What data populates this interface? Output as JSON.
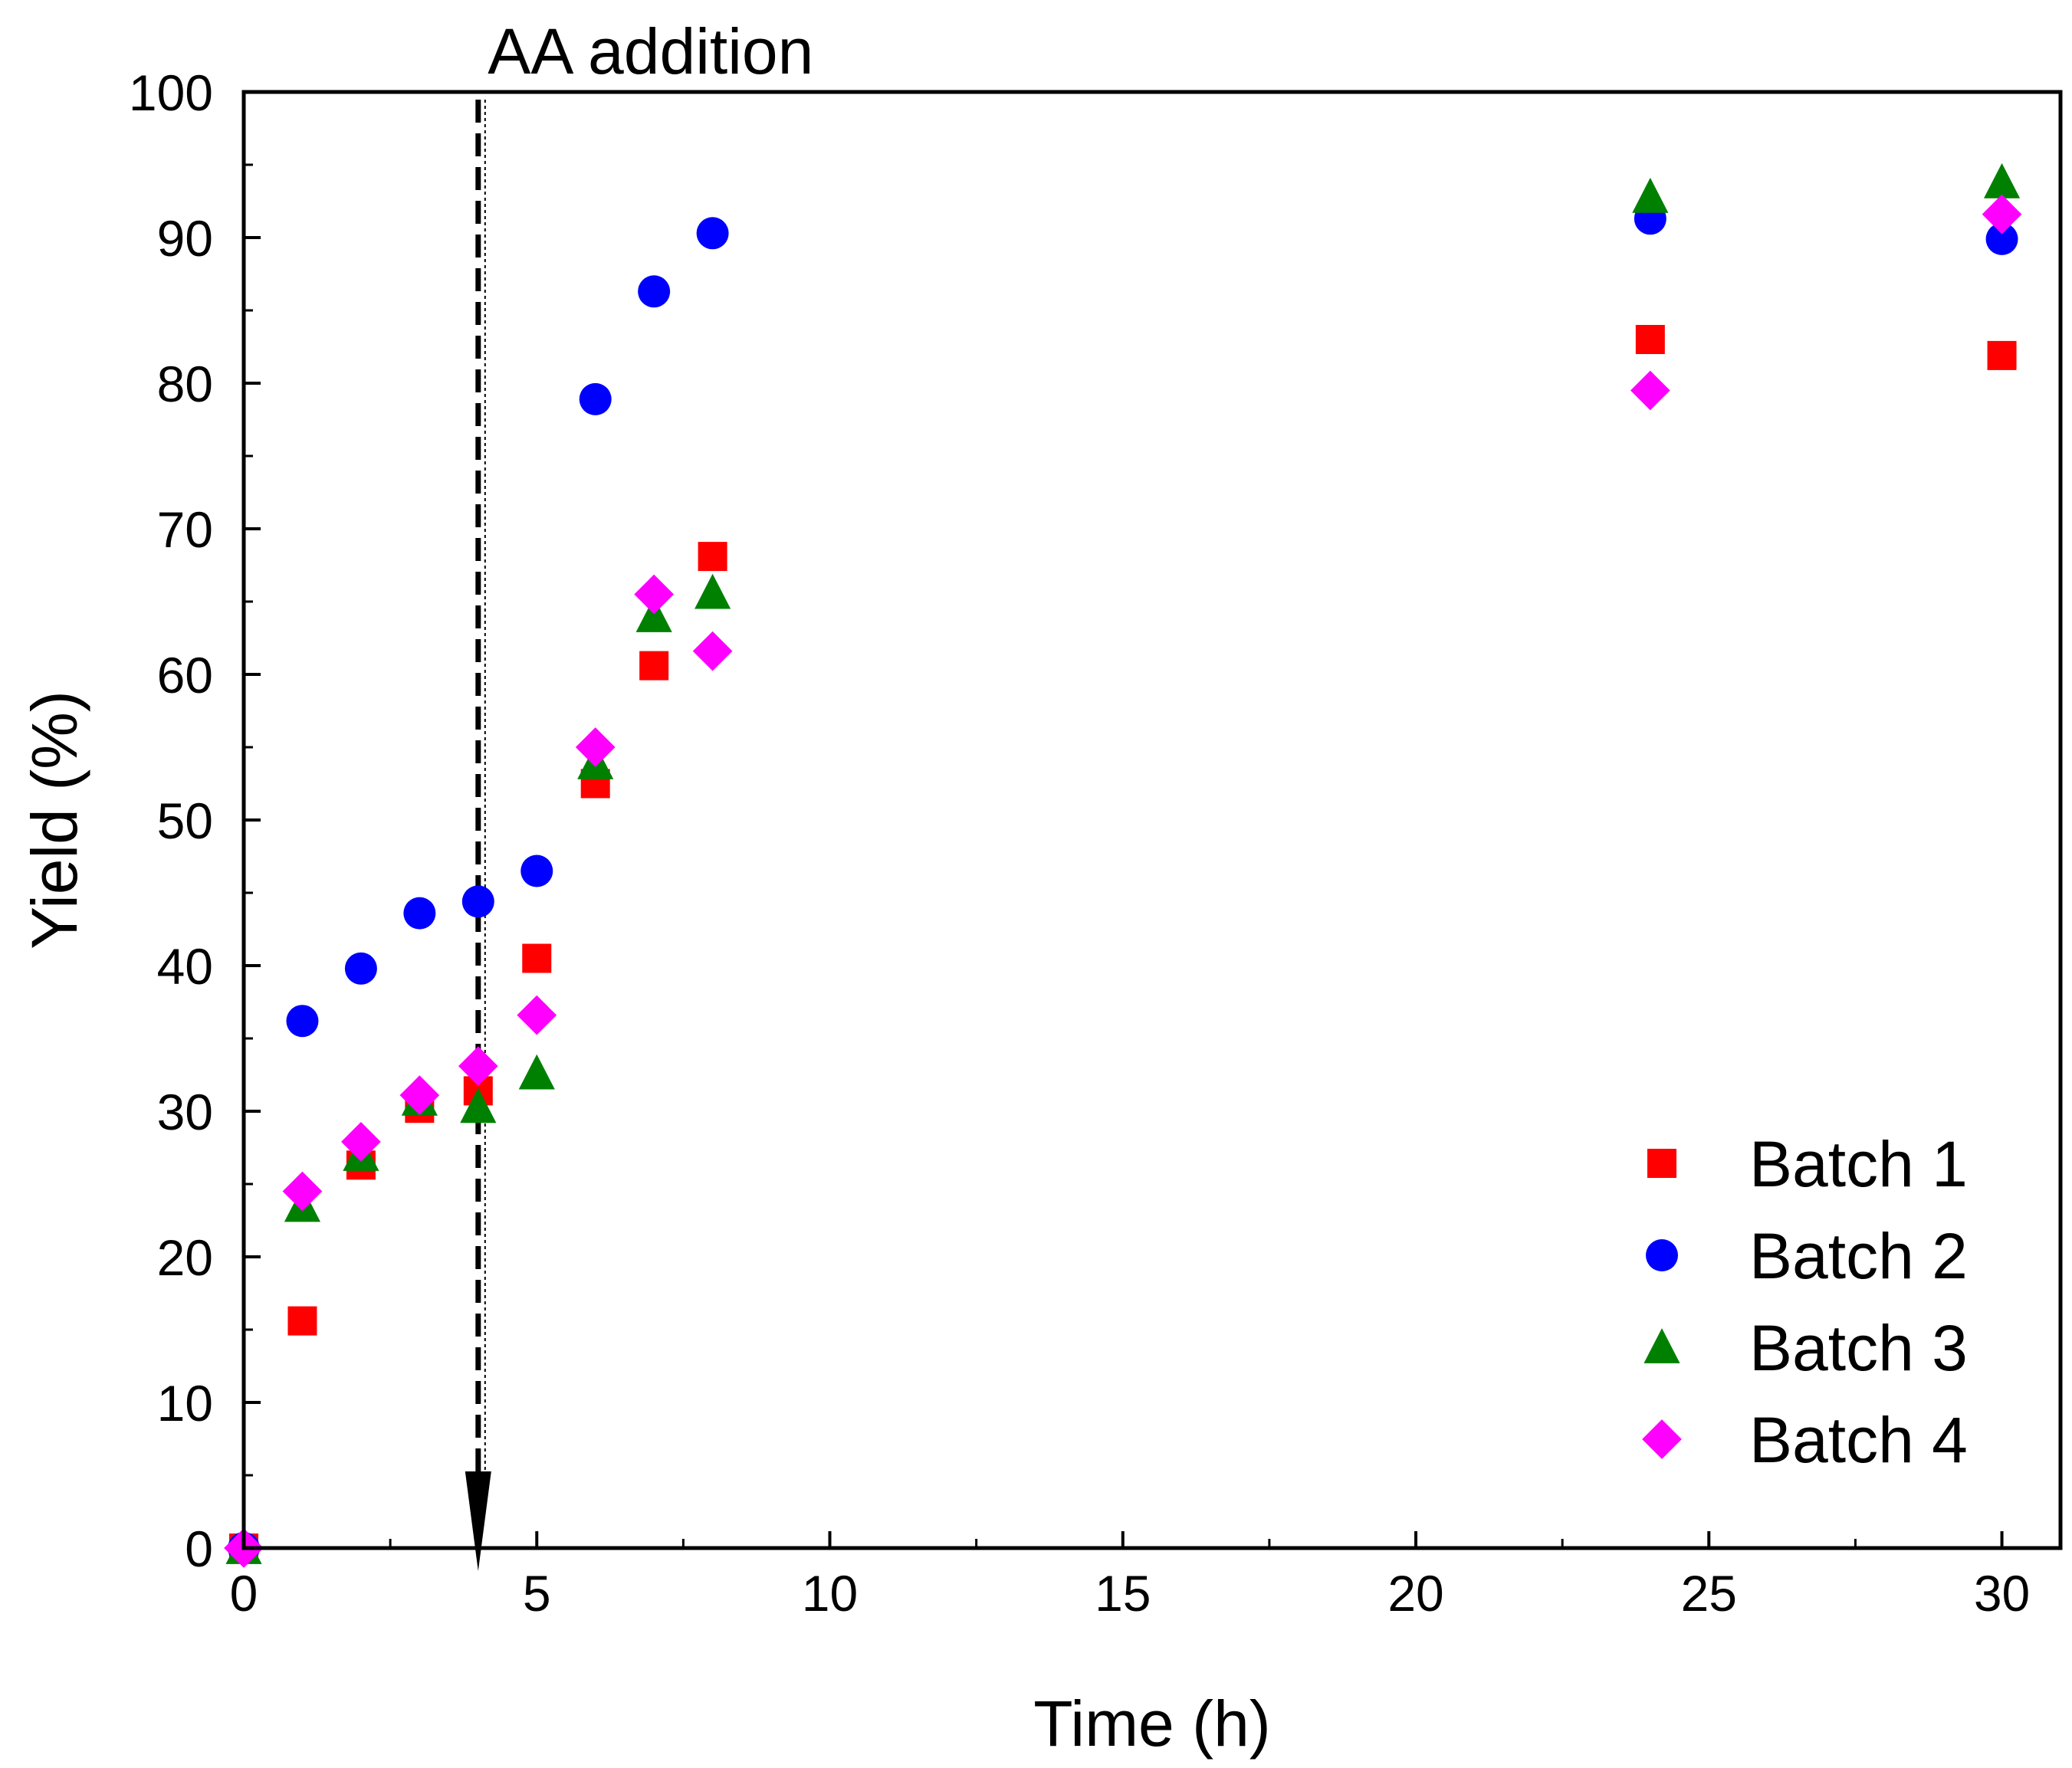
{
  "chart_data": {
    "type": "scatter",
    "title": "",
    "xlabel": "Time (h)",
    "ylabel": "Yield (%)",
    "xlim": [
      0,
      31
    ],
    "ylim": [
      0,
      100
    ],
    "xticks": [
      0,
      5,
      10,
      15,
      20,
      25,
      30
    ],
    "xtick_labels": [
      "0",
      "5",
      "10",
      "15",
      "20",
      "25",
      "30"
    ],
    "yticks": [
      0,
      10,
      20,
      30,
      40,
      50,
      60,
      70,
      80,
      90,
      100
    ],
    "ytick_labels": [
      "0",
      "10",
      "20",
      "30",
      "40",
      "50",
      "60",
      "70",
      "80",
      "90",
      "100"
    ],
    "grid": false,
    "legend_position": "bottom-right",
    "annotation": {
      "text": "AA addition",
      "x": 4
    },
    "series": [
      {
        "name": "Batch 1",
        "marker": "square",
        "color": "#ff0000",
        "x": [
          0,
          1,
          2,
          3,
          4,
          5,
          6,
          7,
          8,
          24,
          30
        ],
        "y": [
          0,
          15.6,
          26.3,
          30.2,
          31.4,
          40.5,
          52.5,
          60.6,
          68.1,
          83.0,
          81.9
        ]
      },
      {
        "name": "Batch 2",
        "marker": "circle",
        "color": "#0000ff",
        "x": [
          0,
          1,
          2,
          3,
          4,
          5,
          6,
          7,
          8,
          24,
          30
        ],
        "y": [
          0,
          36.2,
          39.8,
          43.6,
          44.4,
          46.5,
          78.9,
          86.3,
          90.3,
          91.3,
          89.9
        ]
      },
      {
        "name": "Batch 3",
        "marker": "triangle",
        "color": "#008000",
        "x": [
          0,
          1,
          2,
          3,
          4,
          5,
          6,
          7,
          8,
          24,
          30
        ],
        "y": [
          0,
          23.5,
          27.0,
          30.8,
          30.3,
          32.6,
          53.9,
          64.0,
          65.6,
          92.8,
          93.8
        ]
      },
      {
        "name": "Batch 4",
        "marker": "diamond",
        "color": "#ff00ff",
        "x": [
          0,
          1,
          2,
          3,
          4,
          5,
          6,
          7,
          8,
          24,
          30
        ],
        "y": [
          0,
          24.5,
          27.9,
          31.1,
          33.1,
          36.6,
          55.0,
          65.5,
          61.6,
          79.5,
          91.6
        ]
      }
    ]
  }
}
